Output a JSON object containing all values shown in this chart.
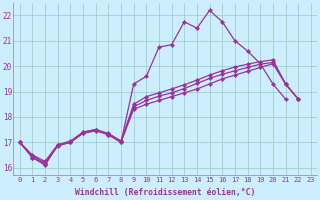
{
  "xlabel": "Windchill (Refroidissement éolien,°C)",
  "background_color": "#cceeff",
  "grid_color": "#99ccbb",
  "line_color": "#993399",
  "xlim": [
    -0.5,
    23.5
  ],
  "ylim": [
    15.7,
    22.5
  ],
  "xticks": [
    0,
    1,
    2,
    3,
    4,
    5,
    6,
    7,
    8,
    9,
    10,
    11,
    12,
    13,
    14,
    15,
    16,
    17,
    18,
    19,
    20,
    21,
    22,
    23
  ],
  "yticks": [
    16,
    17,
    18,
    19,
    20,
    21,
    22
  ],
  "series": [
    {
      "x": [
        0,
        1,
        2,
        3,
        4,
        5,
        6,
        7,
        8,
        9,
        10,
        11,
        12,
        13,
        14,
        15,
        16,
        17,
        18,
        19,
        20,
        21,
        22,
        23
      ],
      "y": [
        17.0,
        16.4,
        16.1,
        16.9,
        17.0,
        17.4,
        17.5,
        17.3,
        17.0,
        19.3,
        19.6,
        20.75,
        20.85,
        21.75,
        21.5,
        22.2,
        21.75,
        21.0,
        20.6,
        20.1,
        19.3,
        18.7,
        null,
        null
      ]
    },
    {
      "x": [
        0,
        1,
        2,
        3,
        4,
        5,
        6,
        7,
        8,
        9,
        10,
        11,
        12,
        13,
        14,
        15,
        16,
        17,
        18,
        19,
        20,
        21,
        22,
        23
      ],
      "y": [
        17.0,
        16.4,
        16.15,
        16.85,
        17.0,
        17.35,
        17.45,
        17.3,
        17.0,
        18.3,
        18.5,
        18.65,
        18.8,
        18.95,
        19.1,
        19.3,
        19.5,
        19.65,
        19.8,
        19.95,
        20.1,
        19.3,
        18.7,
        null
      ]
    },
    {
      "x": [
        0,
        1,
        2,
        3,
        4,
        5,
        6,
        7,
        8,
        9,
        10,
        11,
        12,
        13,
        14,
        15,
        16,
        17,
        18,
        19,
        20,
        21,
        22,
        23
      ],
      "y": [
        17.0,
        16.45,
        16.2,
        16.9,
        17.0,
        17.38,
        17.5,
        17.33,
        17.05,
        18.4,
        18.65,
        18.82,
        18.95,
        19.12,
        19.32,
        19.52,
        19.68,
        19.82,
        19.95,
        20.08,
        20.15,
        19.3,
        18.7,
        null
      ]
    },
    {
      "x": [
        0,
        1,
        2,
        3,
        4,
        5,
        6,
        7,
        8,
        9,
        10,
        11,
        12,
        13,
        14,
        15,
        16,
        17,
        18,
        19,
        20,
        21,
        22,
        23
      ],
      "y": [
        17.0,
        16.5,
        16.25,
        16.9,
        17.05,
        17.4,
        17.5,
        17.35,
        17.05,
        18.5,
        18.8,
        18.95,
        19.1,
        19.27,
        19.45,
        19.65,
        19.82,
        19.97,
        20.08,
        20.18,
        20.25,
        19.3,
        18.7,
        null
      ]
    }
  ]
}
